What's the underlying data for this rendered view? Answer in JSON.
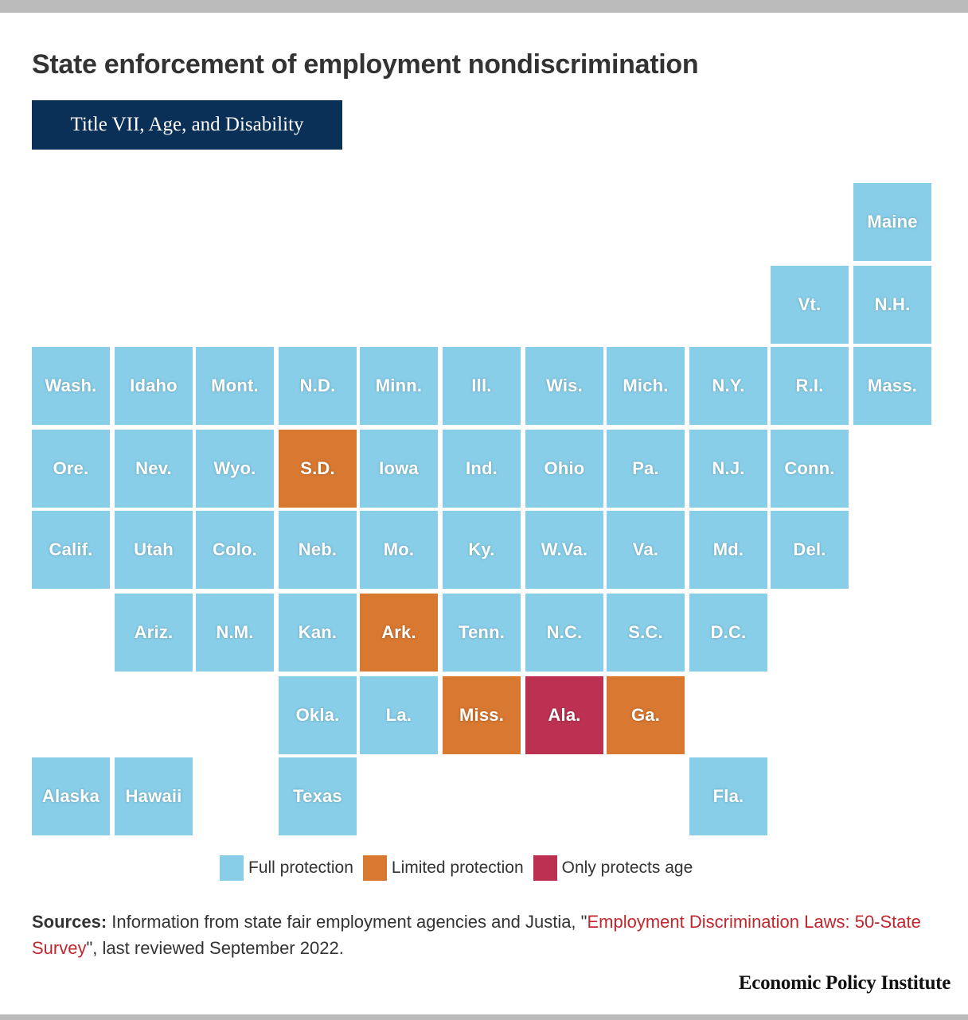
{
  "header": {
    "title": "State enforcement of employment nondiscrimination",
    "tab_label": "Title VII, Age, and Disability"
  },
  "colors": {
    "full": "#88cee8",
    "limited": "#d97830",
    "age": "#bc3152"
  },
  "chart_data": {
    "type": "tile-map",
    "title": "State enforcement of employment nondiscrimination",
    "subtitle": "Title VII, Age, and Disability",
    "categories": {
      "full": "Full protection",
      "limited": "Limited protection",
      "age": "Only protects age"
    },
    "tiles": [
      {
        "label": "Maine",
        "col": 10,
        "row": 0,
        "status": "full"
      },
      {
        "label": "Vt.",
        "col": 9,
        "row": 1,
        "status": "full"
      },
      {
        "label": "N.H.",
        "col": 10,
        "row": 1,
        "status": "full"
      },
      {
        "label": "Wash.",
        "col": 0,
        "row": 2,
        "status": "full"
      },
      {
        "label": "Idaho",
        "col": 1,
        "row": 2,
        "status": "full"
      },
      {
        "label": "Mont.",
        "col": 2,
        "row": 2,
        "status": "full"
      },
      {
        "label": "N.D.",
        "col": 3,
        "row": 2,
        "status": "full"
      },
      {
        "label": "Minn.",
        "col": 4,
        "row": 2,
        "status": "full"
      },
      {
        "label": "Ill.",
        "col": 5,
        "row": 2,
        "status": "full"
      },
      {
        "label": "Wis.",
        "col": 6,
        "row": 2,
        "status": "full"
      },
      {
        "label": "Mich.",
        "col": 7,
        "row": 2,
        "status": "full"
      },
      {
        "label": "N.Y.",
        "col": 8,
        "row": 2,
        "status": "full"
      },
      {
        "label": "R.I.",
        "col": 9,
        "row": 2,
        "status": "full"
      },
      {
        "label": "Mass.",
        "col": 10,
        "row": 2,
        "status": "full"
      },
      {
        "label": "Ore.",
        "col": 0,
        "row": 3,
        "status": "full"
      },
      {
        "label": "Nev.",
        "col": 1,
        "row": 3,
        "status": "full"
      },
      {
        "label": "Wyo.",
        "col": 2,
        "row": 3,
        "status": "full"
      },
      {
        "label": "S.D.",
        "col": 3,
        "row": 3,
        "status": "limited"
      },
      {
        "label": "Iowa",
        "col": 4,
        "row": 3,
        "status": "full"
      },
      {
        "label": "Ind.",
        "col": 5,
        "row": 3,
        "status": "full"
      },
      {
        "label": "Ohio",
        "col": 6,
        "row": 3,
        "status": "full"
      },
      {
        "label": "Pa.",
        "col": 7,
        "row": 3,
        "status": "full"
      },
      {
        "label": "N.J.",
        "col": 8,
        "row": 3,
        "status": "full"
      },
      {
        "label": "Conn.",
        "col": 9,
        "row": 3,
        "status": "full"
      },
      {
        "label": "Calif.",
        "col": 0,
        "row": 4,
        "status": "full"
      },
      {
        "label": "Utah",
        "col": 1,
        "row": 4,
        "status": "full"
      },
      {
        "label": "Colo.",
        "col": 2,
        "row": 4,
        "status": "full"
      },
      {
        "label": "Neb.",
        "col": 3,
        "row": 4,
        "status": "full"
      },
      {
        "label": "Mo.",
        "col": 4,
        "row": 4,
        "status": "full"
      },
      {
        "label": "Ky.",
        "col": 5,
        "row": 4,
        "status": "full"
      },
      {
        "label": "W.Va.",
        "col": 6,
        "row": 4,
        "status": "full"
      },
      {
        "label": "Va.",
        "col": 7,
        "row": 4,
        "status": "full"
      },
      {
        "label": "Md.",
        "col": 8,
        "row": 4,
        "status": "full"
      },
      {
        "label": "Del.",
        "col": 9,
        "row": 4,
        "status": "full"
      },
      {
        "label": "Ariz.",
        "col": 1,
        "row": 5,
        "status": "full"
      },
      {
        "label": "N.M.",
        "col": 2,
        "row": 5,
        "status": "full"
      },
      {
        "label": "Kan.",
        "col": 3,
        "row": 5,
        "status": "full"
      },
      {
        "label": "Ark.",
        "col": 4,
        "row": 5,
        "status": "limited"
      },
      {
        "label": "Tenn.",
        "col": 5,
        "row": 5,
        "status": "full"
      },
      {
        "label": "N.C.",
        "col": 6,
        "row": 5,
        "status": "full"
      },
      {
        "label": "S.C.",
        "col": 7,
        "row": 5,
        "status": "full"
      },
      {
        "label": "D.C.",
        "col": 8,
        "row": 5,
        "status": "full"
      },
      {
        "label": "Okla.",
        "col": 3,
        "row": 6,
        "status": "full"
      },
      {
        "label": "La.",
        "col": 4,
        "row": 6,
        "status": "full"
      },
      {
        "label": "Miss.",
        "col": 5,
        "row": 6,
        "status": "limited"
      },
      {
        "label": "Ala.",
        "col": 6,
        "row": 6,
        "status": "age"
      },
      {
        "label": "Ga.",
        "col": 7,
        "row": 6,
        "status": "limited"
      },
      {
        "label": "Alaska",
        "col": 0,
        "row": 7,
        "status": "full"
      },
      {
        "label": "Hawaii",
        "col": 1,
        "row": 7,
        "status": "full"
      },
      {
        "label": "Texas",
        "col": 3,
        "row": 7,
        "status": "full"
      },
      {
        "label": "Fla.",
        "col": 8,
        "row": 7,
        "status": "full"
      }
    ]
  },
  "legend": {
    "items": [
      {
        "label": "Full protection",
        "status": "full"
      },
      {
        "label": "Limited protection",
        "status": "limited"
      },
      {
        "label": "Only protects age",
        "status": "age"
      }
    ]
  },
  "footer": {
    "sources_label": "Sources:",
    "sources_text_before": " Information from state fair employment agencies and Justia, \"",
    "sources_link": "Employment Discrimination Laws: 50-State Survey",
    "sources_text_after": "\", last reviewed September 2022.",
    "brand": "Economic Policy Institute"
  }
}
